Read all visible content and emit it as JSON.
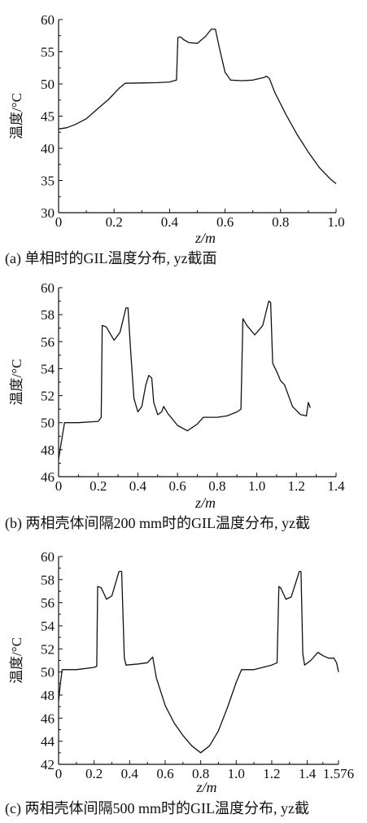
{
  "chart_data": [
    {
      "type": "line",
      "caption": "(a)  单相时的GIL温度分布, yz截面",
      "xlabel": "z/m",
      "ylabel": "温度/°C",
      "xlim": [
        0,
        1.0
      ],
      "ylim": [
        30,
        60
      ],
      "xticks": [
        0,
        0.2,
        0.4,
        0.6,
        0.8,
        1.0
      ],
      "xtick_labels": [
        "0",
        "0.2",
        "0.4",
        "0.6",
        "0.8",
        "1.0"
      ],
      "yticks": [
        30,
        35,
        40,
        45,
        50,
        55,
        60
      ],
      "ytick_labels": [
        "30",
        "35",
        "40",
        "45",
        "50",
        "55",
        "60"
      ],
      "grid": false,
      "series": [
        {
          "x": [
            0,
            0.03,
            0.06,
            0.1,
            0.14,
            0.18,
            0.22,
            0.24,
            0.3,
            0.36,
            0.4,
            0.425,
            0.43,
            0.44,
            0.45,
            0.47,
            0.5,
            0.53,
            0.55,
            0.565,
            0.58,
            0.6,
            0.62,
            0.66,
            0.7,
            0.74,
            0.75,
            0.76,
            0.78,
            0.82,
            0.86,
            0.9,
            0.94,
            0.98,
            1.0
          ],
          "y": [
            43,
            43.2,
            43.7,
            44.6,
            46.1,
            47.6,
            49.4,
            50.1,
            50.15,
            50.2,
            50.3,
            50.6,
            57.2,
            57.3,
            56.9,
            56.4,
            56.3,
            57.4,
            58.5,
            58.5,
            55.5,
            51.8,
            50.6,
            50.5,
            50.6,
            51,
            51.2,
            50.8,
            48.6,
            45.2,
            42.1,
            39.4,
            37,
            35.2,
            34.5
          ]
        }
      ]
    },
    {
      "type": "line",
      "caption": "(b)  两相壳体间隔200 mm时的GIL温度分布, yz截",
      "xlabel": "z/m",
      "ylabel": "温度/°C",
      "xlim": [
        0,
        1.4
      ],
      "ylim": [
        46,
        60
      ],
      "xticks": [
        0,
        0.2,
        0.4,
        0.6,
        0.8,
        1.0,
        1.2,
        1.4
      ],
      "xtick_labels": [
        "0",
        "0.2",
        "0.4",
        "0.6",
        "0.8",
        "1.0",
        "1.2",
        "1.4"
      ],
      "yticks": [
        46,
        48,
        50,
        52,
        54,
        56,
        58,
        60
      ],
      "ytick_labels": [
        "46",
        "48",
        "50",
        "52",
        "54",
        "56",
        "58",
        "60"
      ],
      "grid": false,
      "series": [
        {
          "x": [
            0,
            0.01,
            0.03,
            0.1,
            0.2,
            0.215,
            0.22,
            0.24,
            0.28,
            0.31,
            0.34,
            0.35,
            0.365,
            0.38,
            0.4,
            0.42,
            0.44,
            0.455,
            0.47,
            0.48,
            0.5,
            0.52,
            0.53,
            0.55,
            0.6,
            0.65,
            0.7,
            0.73,
            0.76,
            0.8,
            0.85,
            0.9,
            0.92,
            0.93,
            0.95,
            0.99,
            1.03,
            1.06,
            1.07,
            1.08,
            1.1,
            1.12,
            1.14,
            1.18,
            1.22,
            1.25,
            1.26,
            1.27
          ],
          "y": [
            47.3,
            48.2,
            50,
            50,
            50.1,
            50.4,
            57.2,
            57.1,
            56.1,
            56.7,
            58.5,
            58.5,
            55,
            51.8,
            50.8,
            51.2,
            52.8,
            53.5,
            53.3,
            51.5,
            50.6,
            50.8,
            51.2,
            50.7,
            49.8,
            49.4,
            49.9,
            50.4,
            50.4,
            50.4,
            50.5,
            50.8,
            51,
            57.7,
            57.2,
            56.5,
            57.2,
            59,
            58.9,
            54.4,
            53.8,
            53.1,
            52.8,
            51.2,
            50.6,
            50.5,
            51.5,
            51.1
          ]
        }
      ]
    },
    {
      "type": "line",
      "caption": "(c)  两相壳体间隔500 mm时的GIL温度分布, yz截",
      "xlabel": "z/m",
      "ylabel": "温度/°C",
      "xlim": [
        0,
        1.576
      ],
      "ylim": [
        42,
        60
      ],
      "xticks": [
        0,
        0.2,
        0.4,
        0.6,
        0.8,
        1.0,
        1.2,
        1.4,
        1.576
      ],
      "xtick_labels": [
        "0",
        "0.2",
        "0.4",
        "0.6",
        "0.8",
        "1.0",
        "1.2",
        "1.4",
        "1.576"
      ],
      "yticks": [
        42,
        44,
        46,
        48,
        50,
        52,
        54,
        56,
        58,
        60
      ],
      "ytick_labels": [
        "42",
        "44",
        "46",
        "48",
        "50",
        "52",
        "54",
        "56",
        "58",
        "60"
      ],
      "grid": false,
      "series": [
        {
          "x": [
            0,
            0.01,
            0.02,
            0.1,
            0.2,
            0.215,
            0.22,
            0.24,
            0.27,
            0.3,
            0.34,
            0.355,
            0.37,
            0.38,
            0.45,
            0.5,
            0.53,
            0.55,
            0.6,
            0.65,
            0.7,
            0.75,
            0.8,
            0.85,
            0.9,
            0.95,
            1.0,
            1.03,
            1.1,
            1.2,
            1.23,
            1.24,
            1.25,
            1.28,
            1.31,
            1.355,
            1.365,
            1.375,
            1.385,
            1.42,
            1.46,
            1.49,
            1.52,
            1.55,
            1.565,
            1.576
          ],
          "y": [
            47.5,
            49,
            50.2,
            50.2,
            50.4,
            50.5,
            57.4,
            57.3,
            56.3,
            56.6,
            58.7,
            58.7,
            51.2,
            50.6,
            50.7,
            50.8,
            51.3,
            49.5,
            47.1,
            45.6,
            44.5,
            43.6,
            43,
            43.6,
            44.9,
            46.9,
            49.1,
            50.2,
            50.2,
            50.6,
            50.8,
            57.4,
            57.3,
            56.3,
            56.5,
            58.7,
            58.7,
            51.6,
            50.6,
            51,
            51.7,
            51.4,
            51.2,
            51.2,
            50.8,
            50
          ]
        }
      ]
    }
  ]
}
